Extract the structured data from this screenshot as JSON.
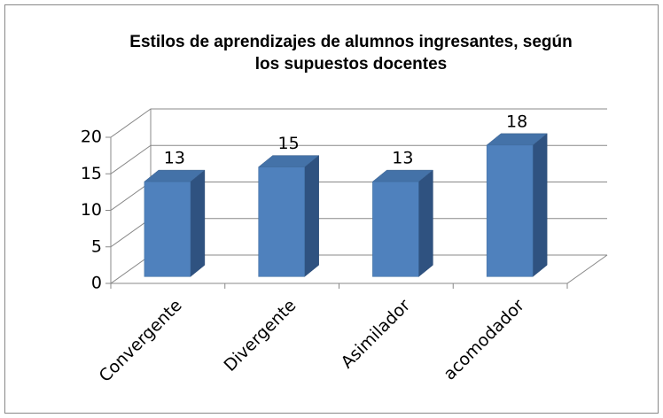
{
  "chart_data": {
    "type": "bar3d",
    "title": "Estilos de aprendizajes de alumnos ingresantes, según los supuestos docentes",
    "categories": [
      "Convergente",
      "Divergente",
      "Asimilador",
      "acomodador"
    ],
    "values": [
      13,
      15,
      13,
      18
    ],
    "color": "#4f81bd",
    "ylim": [
      0,
      20
    ],
    "yticks": [
      0,
      5,
      10,
      15,
      20
    ],
    "grid": true
  }
}
